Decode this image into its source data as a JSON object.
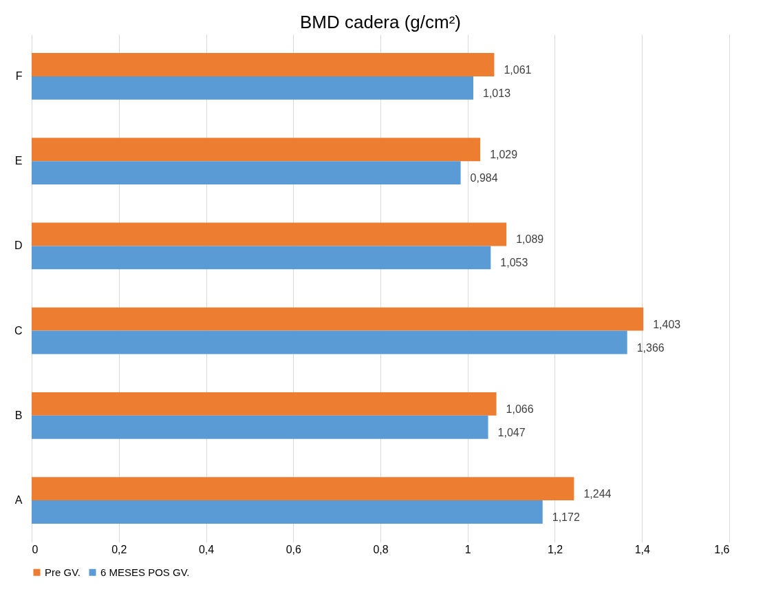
{
  "chart_data": {
    "type": "bar",
    "orientation": "horizontal",
    "title": "BMD cadera (g/cm²)",
    "categories": [
      "F",
      "E",
      "D",
      "C",
      "B",
      "A"
    ],
    "series": [
      {
        "name": "Pre GV.",
        "color": "#ed7d31",
        "values": [
          1.061,
          1.029,
          1.089,
          1.403,
          1.066,
          1.244
        ],
        "value_labels": [
          "1,061",
          "1,029",
          "1,089",
          "1,403",
          "1,066",
          "1,244"
        ]
      },
      {
        "name": "6 MESES POS GV.",
        "color": "#5b9bd5",
        "values": [
          1.013,
          0.984,
          1.053,
          1.366,
          1.047,
          1.172
        ],
        "value_labels": [
          "1,013",
          "0,984",
          "1,053",
          "1,366",
          "1,047",
          "1,172"
        ]
      }
    ],
    "xlim": [
      0,
      1.6
    ],
    "xticks": [
      0,
      {
        "value": 0.2,
        "label": "0,2"
      },
      {
        "value": 0.4,
        "label": "0,4"
      },
      {
        "value": 0.6,
        "label": "0,6"
      },
      {
        "value": 0.8,
        "label": "0,8"
      },
      1,
      {
        "value": 1.2,
        "label": "1,2"
      },
      {
        "value": 1.4,
        "label": "1,4"
      },
      {
        "value": 1.6,
        "label": "1,6"
      }
    ],
    "grid": "x",
    "legend": "bottom"
  }
}
